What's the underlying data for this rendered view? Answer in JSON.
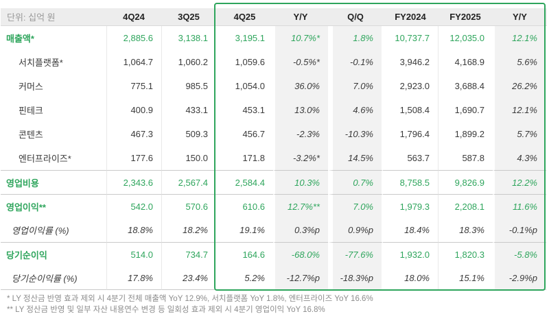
{
  "colors": {
    "accent_green": "#2ea55c",
    "header_bg": "#ededed",
    "band_bg": "#f2f2f2",
    "separator": "#c9c9c9"
  },
  "chart_data": {
    "type": "table",
    "unit": "단위: 십억 원",
    "columns": [
      "4Q24",
      "3Q25",
      "4Q25",
      "Y/Y",
      "Q/Q",
      "FY2024",
      "FY2025",
      "Y/Y"
    ],
    "highlighted_columns": [
      "4Q25",
      "Y/Y",
      "Q/Q",
      "FY2024",
      "FY2025",
      "Y/Y"
    ],
    "rows": [
      {
        "label": "매출액*",
        "style": "primary",
        "separator": false,
        "values": [
          "2,885.6",
          "3,138.1",
          "3,195.1",
          "10.7%*",
          "1.8%",
          "10,737.7",
          "12,035.0",
          "12.1%"
        ]
      },
      {
        "label": "서치플랫폼*",
        "style": "sub",
        "separator": false,
        "values": [
          "1,064.7",
          "1,060.2",
          "1,059.6",
          "-0.5%*",
          "-0.1%",
          "3,946.2",
          "4,168.9",
          "5.6%"
        ]
      },
      {
        "label": "커머스",
        "style": "sub",
        "separator": false,
        "values": [
          "775.1",
          "985.5",
          "1,054.0",
          "36.0%",
          "7.0%",
          "2,923.0",
          "3,688.4",
          "26.2%"
        ]
      },
      {
        "label": "핀테크",
        "style": "sub",
        "separator": false,
        "values": [
          "400.9",
          "433.1",
          "453.1",
          "13.0%",
          "4.6%",
          "1,508.4",
          "1,690.7",
          "12.1%"
        ]
      },
      {
        "label": "콘텐츠",
        "style": "sub",
        "separator": false,
        "values": [
          "467.3",
          "509.3",
          "456.7",
          "-2.3%",
          "-10.3%",
          "1,796.4",
          "1,899.2",
          "5.7%"
        ]
      },
      {
        "label": "엔터프라이즈*",
        "style": "sub",
        "separator": false,
        "values": [
          "177.6",
          "150.0",
          "171.8",
          "-3.2%*",
          "14.5%",
          "563.7",
          "587.8",
          "4.3%"
        ]
      },
      {
        "label": "영업비용",
        "style": "primary",
        "separator": true,
        "values": [
          "2,343.6",
          "2,567.4",
          "2,584.4",
          "10.3%",
          "0.7%",
          "8,758.5",
          "9,826.9",
          "12.2%"
        ]
      },
      {
        "label": "영업이익**",
        "style": "primary",
        "separator": true,
        "values": [
          "542.0",
          "570.6",
          "610.6",
          "12.7%**",
          "7.0%",
          "1,979.3",
          "2,208.1",
          "11.6%"
        ]
      },
      {
        "label": "영업이익률 (%)",
        "style": "ratio",
        "separator": false,
        "values": [
          "18.8%",
          "18.2%",
          "19.1%",
          "0.3%p",
          "0.9%p",
          "18.4%",
          "18.3%",
          "-0.1%p"
        ]
      },
      {
        "label": "당기순이익",
        "style": "primary",
        "separator": true,
        "values": [
          "514.0",
          "734.7",
          "164.6",
          "-68.0%",
          "-77.6%",
          "1,932.0",
          "1,820.3",
          "-5.8%"
        ]
      },
      {
        "label": "당기순이익률 (%)",
        "style": "ratio",
        "separator": false,
        "values": [
          "17.8%",
          "23.4%",
          "5.2%",
          "-12.7%p",
          "-18.3%p",
          "18.0%",
          "15.1%",
          "-2.9%p"
        ]
      }
    ],
    "footnotes": [
      "* LY 정산금 반영 효과 제외 시 4분기 전체 매출액 YoY 12.9%, 서치플랫폼 YoY 1.8%, 엔터프라이즈 YoY 16.6%",
      "** LY 정산금 반영 및 일부 자산 내용연수 변경 등 일회성 효과 제외 시 4분기 영업이익 YoY 16.8%"
    ]
  }
}
